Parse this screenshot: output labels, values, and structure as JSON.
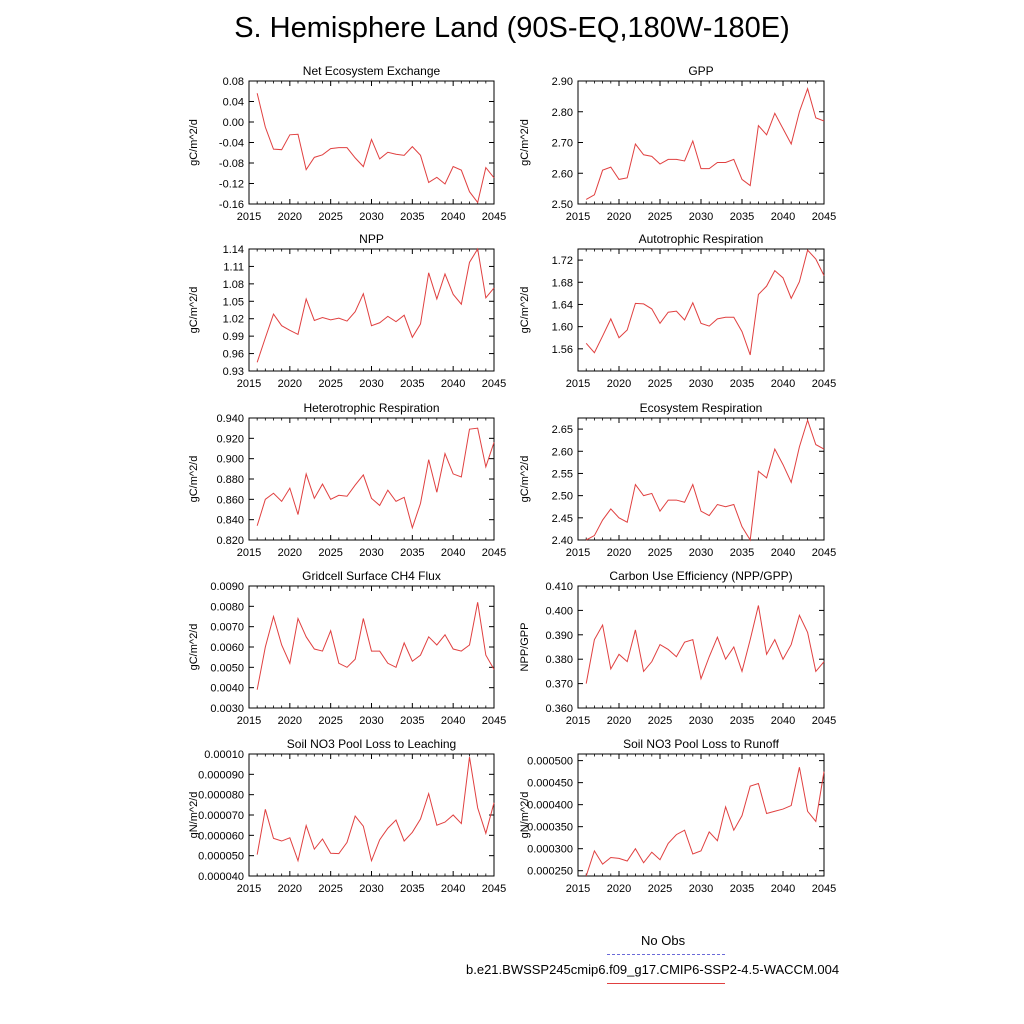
{
  "title": "S. Hemisphere Land (90S-EQ,180W-180E)",
  "legend": {
    "obs_label": "No Obs",
    "run_label": "b.e21.BWSSP245cmip6.f09_g17.CMIP6-SSP2-4.5-WACCM.004",
    "obs_color": "#6a6ad8",
    "run_color": "#e04040"
  },
  "chart_data": [
    {
      "type": "line",
      "title": "Net Ecosystem Exchange",
      "xlabel": "",
      "ylabel": "gC/m^2/d",
      "xlim": [
        2015,
        2045
      ],
      "ylim": [
        -0.16,
        0.08
      ],
      "xticks": [
        "2015",
        "2020",
        "2025",
        "2030",
        "2035",
        "2040",
        "2045"
      ],
      "yticks": [
        "-0.16",
        "-0.12",
        "-0.08",
        "-0.04",
        "0.00",
        "0.04",
        "0.08"
      ],
      "x": [
        2016,
        2017,
        2018,
        2019,
        2020,
        2021,
        2022,
        2023,
        2024,
        2025,
        2026,
        2027,
        2028,
        2029,
        2030,
        2031,
        2032,
        2033,
        2034,
        2035,
        2036,
        2037,
        2038,
        2039,
        2040,
        2041,
        2042,
        2043,
        2044,
        2045
      ],
      "series": [
        {
          "name": "b.e21.BWSSP245cmip6.f09_g17.CMIP6-SSP2-4.5-WACCM.004",
          "values": [
            0.056,
            -0.01,
            -0.053,
            -0.054,
            -0.025,
            -0.024,
            -0.093,
            -0.069,
            -0.064,
            -0.052,
            -0.05,
            -0.05,
            -0.07,
            -0.087,
            -0.034,
            -0.072,
            -0.059,
            -0.063,
            -0.065,
            -0.048,
            -0.065,
            -0.118,
            -0.108,
            -0.121,
            -0.087,
            -0.094,
            -0.136,
            -0.157,
            -0.089,
            -0.109
          ]
        }
      ]
    },
    {
      "type": "line",
      "title": "GPP",
      "xlabel": "",
      "ylabel": "gC/m^2/d",
      "xlim": [
        2015,
        2045
      ],
      "ylim": [
        2.5,
        2.9
      ],
      "xticks": [
        "2015",
        "2020",
        "2025",
        "2030",
        "2035",
        "2040",
        "2045"
      ],
      "yticks": [
        "2.50",
        "2.60",
        "2.70",
        "2.80",
        "2.90"
      ],
      "x": [
        2016,
        2017,
        2018,
        2019,
        2020,
        2021,
        2022,
        2023,
        2024,
        2025,
        2026,
        2027,
        2028,
        2029,
        2030,
        2031,
        2032,
        2033,
        2034,
        2035,
        2036,
        2037,
        2038,
        2039,
        2040,
        2041,
        2042,
        2043,
        2044,
        2045
      ],
      "series": [
        {
          "name": "b.e21.BWSSP245cmip6.f09_g17.CMIP6-SSP2-4.5-WACCM.004",
          "values": [
            2.515,
            2.53,
            2.61,
            2.62,
            2.58,
            2.585,
            2.695,
            2.66,
            2.655,
            2.63,
            2.645,
            2.645,
            2.64,
            2.705,
            2.615,
            2.615,
            2.635,
            2.635,
            2.645,
            2.58,
            2.56,
            2.755,
            2.725,
            2.795,
            2.745,
            2.695,
            2.8,
            2.875,
            2.78,
            2.77
          ]
        }
      ]
    },
    {
      "type": "line",
      "title": "NPP",
      "xlabel": "",
      "ylabel": "gC/m^2/d",
      "xlim": [
        2015,
        2045
      ],
      "ylim": [
        0.93,
        1.14
      ],
      "xticks": [
        "2015",
        "2020",
        "2025",
        "2030",
        "2035",
        "2040",
        "2045"
      ],
      "yticks": [
        "0.93",
        "0.96",
        "0.99",
        "1.02",
        "1.05",
        "1.08",
        "1.11",
        "1.14"
      ],
      "x": [
        2016,
        2017,
        2018,
        2019,
        2020,
        2021,
        2022,
        2023,
        2024,
        2025,
        2026,
        2027,
        2028,
        2029,
        2030,
        2031,
        2032,
        2033,
        2034,
        2035,
        2036,
        2037,
        2038,
        2039,
        2040,
        2041,
        2042,
        2043,
        2044,
        2045
      ],
      "series": [
        {
          "name": "b.e21.BWSSP245cmip6.f09_g17.CMIP6-SSP2-4.5-WACCM.004",
          "values": [
            0.945,
            0.987,
            1.028,
            1.008,
            1.0,
            0.993,
            1.054,
            1.017,
            1.022,
            1.018,
            1.021,
            1.016,
            1.032,
            1.063,
            1.008,
            1.013,
            1.024,
            1.015,
            1.026,
            0.988,
            1.011,
            1.099,
            1.054,
            1.097,
            1.062,
            1.045,
            1.117,
            1.14,
            1.056,
            1.073
          ]
        }
      ]
    },
    {
      "type": "line",
      "title": "Autotrophic Respiration",
      "xlabel": "",
      "ylabel": "gC/m^2/d",
      "xlim": [
        2015,
        2045
      ],
      "ylim": [
        1.52,
        1.74
      ],
      "xticks": [
        "2015",
        "2020",
        "2025",
        "2030",
        "2035",
        "2040",
        "2045"
      ],
      "yticks": [
        "1.56",
        "1.60",
        "1.64",
        "1.68",
        "1.72"
      ],
      "x": [
        2016,
        2017,
        2018,
        2019,
        2020,
        2021,
        2022,
        2023,
        2024,
        2025,
        2026,
        2027,
        2028,
        2029,
        2030,
        2031,
        2032,
        2033,
        2034,
        2035,
        2036,
        2037,
        2038,
        2039,
        2040,
        2041,
        2042,
        2043,
        2044,
        2045
      ],
      "series": [
        {
          "name": "b.e21.BWSSP245cmip6.f09_g17.CMIP6-SSP2-4.5-WACCM.004",
          "values": [
            1.57,
            1.553,
            1.583,
            1.614,
            1.58,
            1.594,
            1.642,
            1.641,
            1.632,
            1.606,
            1.626,
            1.628,
            1.612,
            1.643,
            1.606,
            1.601,
            1.614,
            1.617,
            1.617,
            1.591,
            1.549,
            1.658,
            1.673,
            1.701,
            1.688,
            1.651,
            1.681,
            1.738,
            1.722,
            1.692
          ]
        }
      ]
    },
    {
      "type": "line",
      "title": "Heterotrophic Respiration",
      "xlabel": "",
      "ylabel": "gC/m^2/d",
      "xlim": [
        2015,
        2045
      ],
      "ylim": [
        0.82,
        0.94
      ],
      "xticks": [
        "2015",
        "2020",
        "2025",
        "2030",
        "2035",
        "2040",
        "2045"
      ],
      "yticks": [
        "0.820",
        "0.840",
        "0.860",
        "0.880",
        "0.900",
        "0.920",
        "0.940"
      ],
      "x": [
        2016,
        2017,
        2018,
        2019,
        2020,
        2021,
        2022,
        2023,
        2024,
        2025,
        2026,
        2027,
        2028,
        2029,
        2030,
        2031,
        2032,
        2033,
        2034,
        2035,
        2036,
        2037,
        2038,
        2039,
        2040,
        2041,
        2042,
        2043,
        2044,
        2045
      ],
      "series": [
        {
          "name": "b.e21.BWSSP245cmip6.f09_g17.CMIP6-SSP2-4.5-WACCM.004",
          "values": [
            0.834,
            0.86,
            0.866,
            0.858,
            0.871,
            0.845,
            0.885,
            0.861,
            0.875,
            0.86,
            0.864,
            0.863,
            0.874,
            0.884,
            0.861,
            0.854,
            0.869,
            0.858,
            0.862,
            0.832,
            0.856,
            0.899,
            0.867,
            0.905,
            0.885,
            0.882,
            0.929,
            0.93,
            0.892,
            0.916
          ]
        }
      ]
    },
    {
      "type": "line",
      "title": "Ecosystem Respiration",
      "xlabel": "",
      "ylabel": "gC/m^2/d",
      "xlim": [
        2015,
        2045
      ],
      "ylim": [
        2.4,
        2.675
      ],
      "xticks": [
        "2015",
        "2020",
        "2025",
        "2030",
        "2035",
        "2040",
        "2045"
      ],
      "yticks": [
        "2.40",
        "2.45",
        "2.50",
        "2.55",
        "2.60",
        "2.65"
      ],
      "x": [
        2016,
        2017,
        2018,
        2019,
        2020,
        2021,
        2022,
        2023,
        2024,
        2025,
        2026,
        2027,
        2028,
        2029,
        2030,
        2031,
        2032,
        2033,
        2034,
        2035,
        2036,
        2037,
        2038,
        2039,
        2040,
        2041,
        2042,
        2043,
        2044,
        2045
      ],
      "series": [
        {
          "name": "b.e21.BWSSP245cmip6.f09_g17.CMIP6-SSP2-4.5-WACCM.004",
          "values": [
            2.4,
            2.41,
            2.445,
            2.47,
            2.45,
            2.44,
            2.525,
            2.5,
            2.505,
            2.465,
            2.49,
            2.49,
            2.485,
            2.525,
            2.465,
            2.455,
            2.48,
            2.475,
            2.48,
            2.43,
            2.4,
            2.555,
            2.54,
            2.605,
            2.57,
            2.53,
            2.61,
            2.67,
            2.615,
            2.605
          ]
        }
      ]
    },
    {
      "type": "line",
      "title": "Gridcell Surface CH4 Flux",
      "xlabel": "",
      "ylabel": "gC/m^2/d",
      "xlim": [
        2015,
        2045
      ],
      "ylim": [
        0.003,
        0.009
      ],
      "xticks": [
        "2015",
        "2020",
        "2025",
        "2030",
        "2035",
        "2040",
        "2045"
      ],
      "yticks": [
        "0.0030",
        "0.0040",
        "0.0050",
        "0.0060",
        "0.0070",
        "0.0080",
        "0.0090"
      ],
      "x": [
        2016,
        2017,
        2018,
        2019,
        2020,
        2021,
        2022,
        2023,
        2024,
        2025,
        2026,
        2027,
        2028,
        2029,
        2030,
        2031,
        2032,
        2033,
        2034,
        2035,
        2036,
        2037,
        2038,
        2039,
        2040,
        2041,
        2042,
        2043,
        2044,
        2045
      ],
      "series": [
        {
          "name": "b.e21.BWSSP245cmip6.f09_g17.CMIP6-SSP2-4.5-WACCM.004",
          "values": [
            0.0039,
            0.006,
            0.0075,
            0.0061,
            0.0052,
            0.0074,
            0.0065,
            0.0059,
            0.0058,
            0.0068,
            0.0052,
            0.005,
            0.0054,
            0.0074,
            0.0058,
            0.0058,
            0.0052,
            0.005,
            0.0062,
            0.0053,
            0.0056,
            0.0065,
            0.0061,
            0.0066,
            0.0059,
            0.0058,
            0.0061,
            0.0082,
            0.0056,
            0.0049
          ]
        }
      ]
    },
    {
      "type": "line",
      "title": "Carbon Use Efficiency (NPP/GPP)",
      "xlabel": "",
      "ylabel": "NPP/GPP",
      "xlim": [
        2015,
        2045
      ],
      "ylim": [
        0.36,
        0.41
      ],
      "xticks": [
        "2015",
        "2020",
        "2025",
        "2030",
        "2035",
        "2040",
        "2045"
      ],
      "yticks": [
        "0.360",
        "0.370",
        "0.380",
        "0.390",
        "0.400",
        "0.410"
      ],
      "x": [
        2016,
        2017,
        2018,
        2019,
        2020,
        2021,
        2022,
        2023,
        2024,
        2025,
        2026,
        2027,
        2028,
        2029,
        2030,
        2031,
        2032,
        2033,
        2034,
        2035,
        2036,
        2037,
        2038,
        2039,
        2040,
        2041,
        2042,
        2043,
        2044,
        2045
      ],
      "series": [
        {
          "name": "b.e21.BWSSP245cmip6.f09_g17.CMIP6-SSP2-4.5-WACCM.004",
          "values": [
            0.37,
            0.388,
            0.394,
            0.376,
            0.382,
            0.379,
            0.392,
            0.375,
            0.379,
            0.386,
            0.384,
            0.381,
            0.387,
            0.388,
            0.372,
            0.381,
            0.389,
            0.38,
            0.385,
            0.375,
            0.388,
            0.402,
            0.382,
            0.388,
            0.38,
            0.386,
            0.398,
            0.391,
            0.375,
            0.379
          ]
        }
      ]
    },
    {
      "type": "line",
      "title": "Soil NO3 Pool Loss to Leaching",
      "xlabel": "",
      "ylabel": "gN/m^2/d",
      "xlim": [
        2015,
        2045
      ],
      "ylim": [
        4e-05,
        0.0001
      ],
      "xticks": [
        "2015",
        "2020",
        "2025",
        "2030",
        "2035",
        "2040",
        "2045"
      ],
      "yticks": [
        "0.000040",
        "0.000050",
        "0.000060",
        "0.000070",
        "0.000080",
        "0.000090",
        "0.00010"
      ],
      "x": [
        2016,
        2017,
        2018,
        2019,
        2020,
        2021,
        2022,
        2023,
        2024,
        2025,
        2026,
        2027,
        2028,
        2029,
        2030,
        2031,
        2032,
        2033,
        2034,
        2035,
        2036,
        2037,
        2038,
        2039,
        2040,
        2041,
        2042,
        2043,
        2044,
        2045
      ],
      "series": [
        {
          "name": "b.e21.BWSSP245cmip6.f09_g17.CMIP6-SSP2-4.5-WACCM.004",
          "values": [
            5.05e-05,
            7.28e-05,
            5.85e-05,
            5.72e-05,
            5.88e-05,
            4.75e-05,
            6.48e-05,
            5.32e-05,
            5.82e-05,
            5.12e-05,
            5.1e-05,
            5.65e-05,
            6.95e-05,
            6.45e-05,
            4.75e-05,
            5.78e-05,
            6.35e-05,
            6.75e-05,
            5.72e-05,
            6.15e-05,
            6.8e-05,
            8.05e-05,
            6.5e-05,
            6.65e-05,
            7e-05,
            6.58e-05,
            9.85e-05,
            7.35e-05,
            6.1e-05,
            7.6e-05
          ]
        }
      ]
    },
    {
      "type": "line",
      "title": "Soil NO3 Pool Loss to Runoff",
      "xlabel": "",
      "ylabel": "gN/m^2/d",
      "xlim": [
        2015,
        2045
      ],
      "ylim": [
        0.000238,
        0.000515
      ],
      "xticks": [
        "2015",
        "2020",
        "2025",
        "2030",
        "2035",
        "2040",
        "2045"
      ],
      "yticks": [
        "0.000250",
        "0.000300",
        "0.000350",
        "0.000400",
        "0.000450",
        "0.000500"
      ],
      "x": [
        2016,
        2017,
        2018,
        2019,
        2020,
        2021,
        2022,
        2023,
        2024,
        2025,
        2026,
        2027,
        2028,
        2029,
        2030,
        2031,
        2032,
        2033,
        2034,
        2035,
        2036,
        2037,
        2038,
        2039,
        2040,
        2041,
        2042,
        2043,
        2044,
        2045
      ],
      "series": [
        {
          "name": "b.e21.BWSSP245cmip6.f09_g17.CMIP6-SSP2-4.5-WACCM.004",
          "values": [
            0.000238,
            0.000295,
            0.000265,
            0.00028,
            0.000278,
            0.000272,
            0.0003,
            0.000268,
            0.000292,
            0.000275,
            0.000312,
            0.000332,
            0.000342,
            0.000288,
            0.000295,
            0.000338,
            0.000318,
            0.000395,
            0.000342,
            0.000375,
            0.000442,
            0.000448,
            0.00038,
            0.000385,
            0.00039,
            0.000398,
            0.000485,
            0.000385,
            0.000362,
            0.000475
          ]
        }
      ]
    }
  ]
}
